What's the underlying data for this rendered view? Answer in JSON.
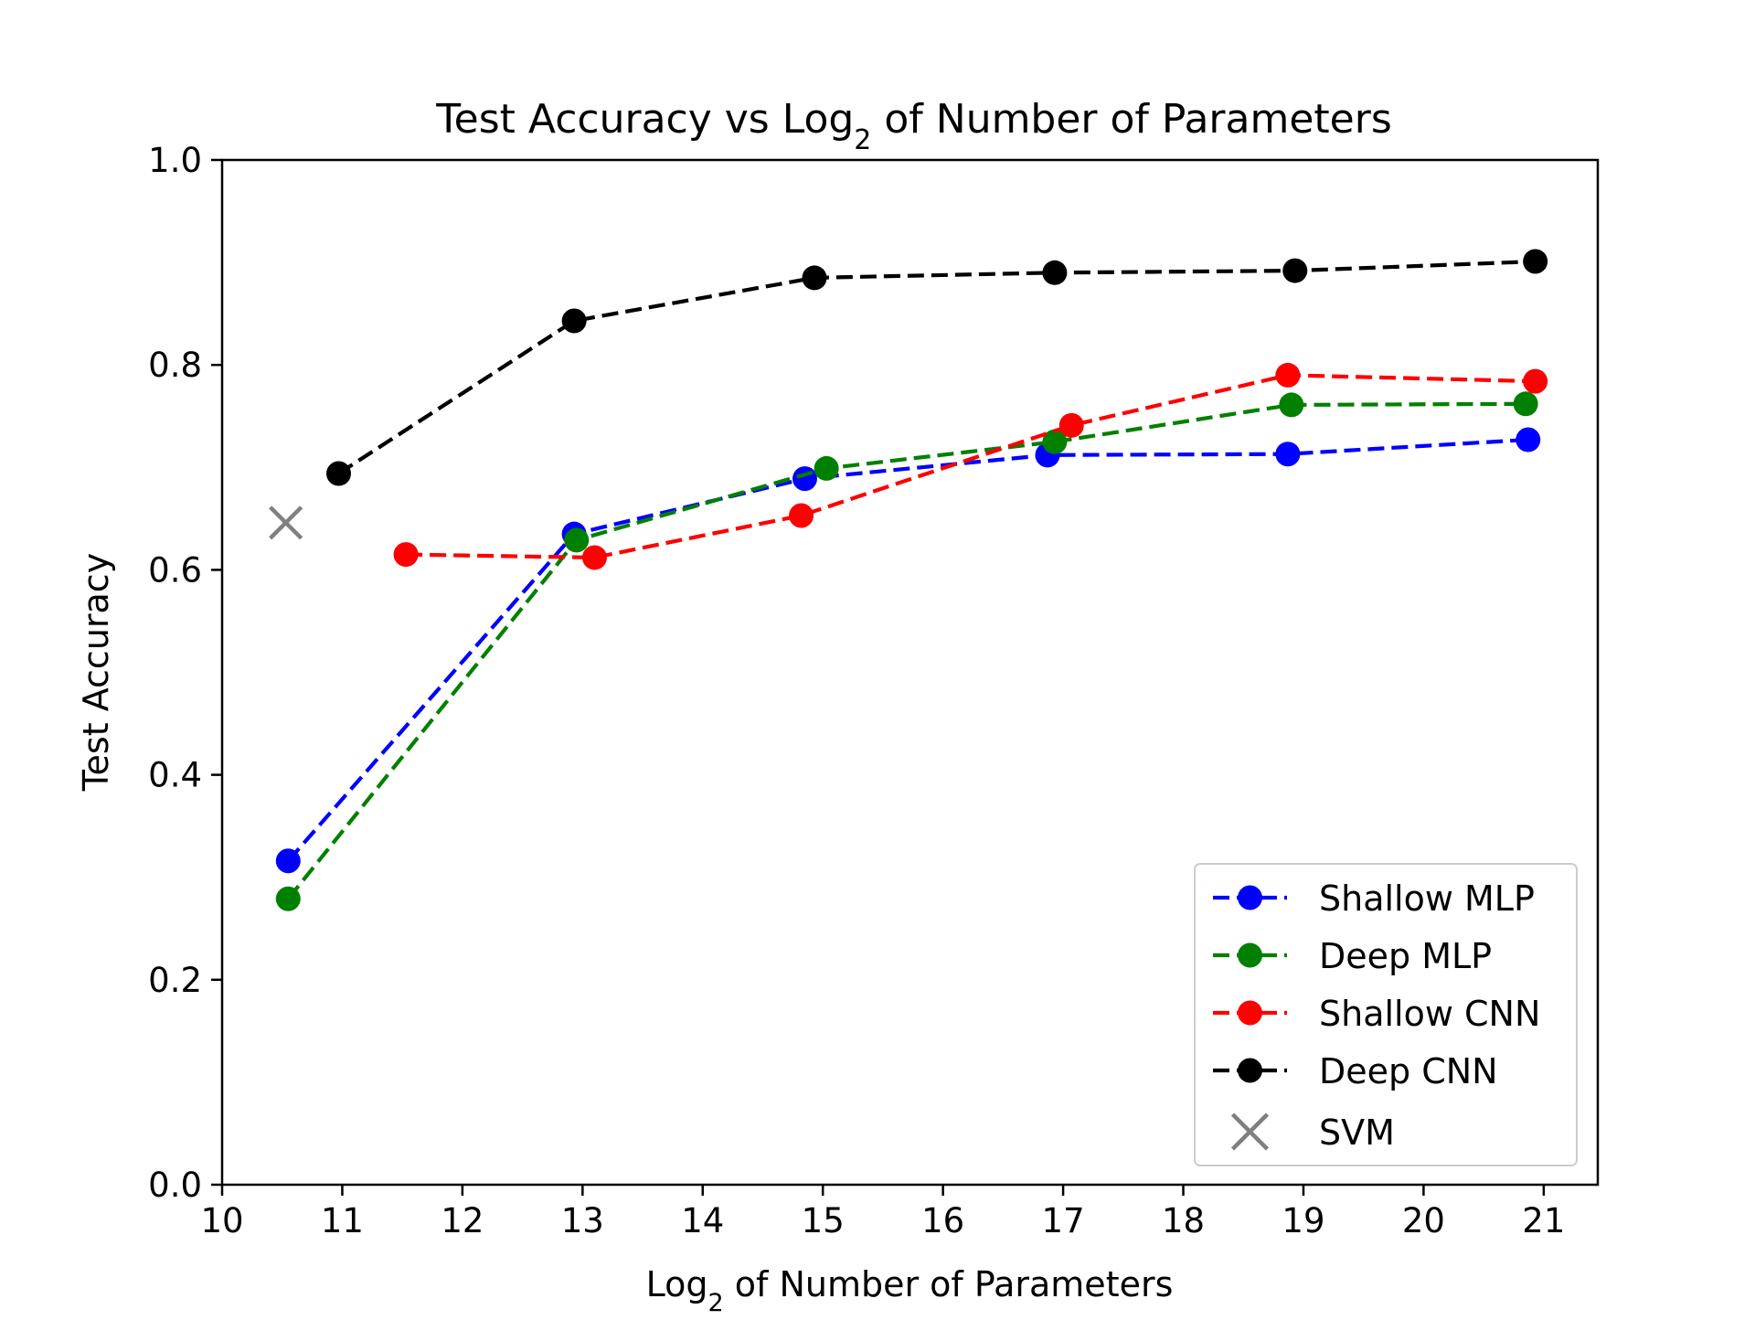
{
  "chart_data": {
    "type": "line",
    "title": {
      "prefix": "Test Accuracy vs Log",
      "subscript": "2",
      "suffix": " of Number of Parameters"
    },
    "xlabel": {
      "prefix": "Log",
      "subscript": "2",
      "suffix": " of Number of Parameters"
    },
    "ylabel": "Test Accuracy",
    "xlim": [
      10,
      21.45
    ],
    "ylim": [
      0.0,
      1.0
    ],
    "xticks": [
      "10",
      "11",
      "12",
      "13",
      "14",
      "15",
      "16",
      "17",
      "18",
      "19",
      "20",
      "21"
    ],
    "yticks": [
      "0.0",
      "0.2",
      "0.4",
      "0.6",
      "0.8",
      "1.0"
    ],
    "grid": false,
    "legend_position": "lower-right",
    "series": [
      {
        "name": "Shallow MLP",
        "color": "#0000ff",
        "marker": "circle",
        "line": "dashed",
        "points": [
          [
            10.55,
            0.316
          ],
          [
            12.93,
            0.635
          ],
          [
            14.85,
            0.689
          ],
          [
            16.87,
            0.712
          ],
          [
            18.87,
            0.713
          ],
          [
            20.87,
            0.727
          ]
        ]
      },
      {
        "name": "Deep MLP",
        "color": "#008000",
        "marker": "circle",
        "line": "dashed",
        "points": [
          [
            10.55,
            0.279
          ],
          [
            12.95,
            0.629
          ],
          [
            15.03,
            0.699
          ],
          [
            16.93,
            0.725
          ],
          [
            18.9,
            0.761
          ],
          [
            20.85,
            0.762
          ]
        ]
      },
      {
        "name": "Shallow CNN",
        "color": "#ff0000",
        "marker": "circle",
        "line": "dashed",
        "points": [
          [
            11.53,
            0.615
          ],
          [
            13.1,
            0.612
          ],
          [
            14.82,
            0.653
          ],
          [
            17.07,
            0.741
          ],
          [
            18.87,
            0.79
          ],
          [
            20.93,
            0.784
          ]
        ]
      },
      {
        "name": "Deep CNN",
        "color": "#000000",
        "marker": "circle",
        "line": "dashed",
        "points": [
          [
            10.97,
            0.694
          ],
          [
            12.93,
            0.843
          ],
          [
            14.93,
            0.885
          ],
          [
            16.93,
            0.89
          ],
          [
            18.93,
            0.892
          ],
          [
            20.93,
            0.901
          ]
        ]
      },
      {
        "name": "SVM",
        "color": "#808080",
        "marker": "x",
        "line": "none",
        "points": [
          [
            10.53,
            0.646
          ]
        ]
      }
    ]
  }
}
